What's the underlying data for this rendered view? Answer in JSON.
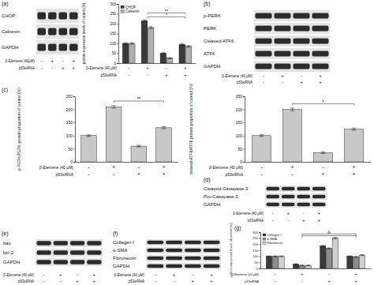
{
  "panel_labels": [
    "(a)",
    "(b)",
    "(c)",
    "(d)",
    "(e)",
    "(f)",
    "(g)"
  ],
  "blots": [
    {
      "rows": [
        "CHOP",
        "Calnexin",
        "GAPDH"
      ],
      "treatments": [
        {
          "label": "β-Elemene (40μM)",
          "signs": [
            "-",
            "+",
            "-",
            "+"
          ]
        },
        {
          "label": "p53siRNA",
          "signs": [
            "-",
            "-",
            "+",
            "+"
          ]
        }
      ]
    },
    {
      "rows": [
        "p-PERK",
        "PERK",
        "Cleaved-ATF6",
        "ATF6",
        "GAPDH"
      ],
      "treatments": [
        {
          "label": "β-Elemene (40 μM)",
          "signs": [
            "-",
            "+",
            "-",
            "+"
          ]
        },
        {
          "label": "p53siRNA",
          "signs": [
            "-",
            "-",
            "+",
            "+"
          ]
        }
      ]
    },
    {
      "rows": [
        "Cleaved-Casepase-3",
        "Pro-Casepase-3",
        "GAPDH"
      ],
      "treatments": [
        {
          "label": "β-Elemene (40 μM)",
          "signs": [
            "-",
            "+",
            "-",
            "+"
          ]
        },
        {
          "label": "p53siRNA",
          "signs": [
            "-",
            "-",
            "+",
            "+"
          ]
        }
      ]
    },
    {
      "rows": [
        "bax",
        "bcl-2",
        "GAPDH"
      ],
      "treatments": [
        {
          "label": "β-Elemene (40 μM)",
          "signs": [
            "-",
            "+",
            "-",
            "+"
          ]
        },
        {
          "label": "p53siRNA",
          "signs": [
            "-",
            "-",
            "+",
            "+"
          ]
        }
      ]
    },
    {
      "rows": [
        "Collagen I",
        "α-SMA",
        "Fibronectin",
        "GAPDH"
      ],
      "treatments": [
        {
          "label": "β-Elemene (40 μM)",
          "signs": [
            "-",
            "+",
            "-",
            "+"
          ]
        },
        {
          "label": "p53siRNA",
          "signs": [
            "-",
            "-",
            "+",
            "+"
          ]
        }
      ]
    }
  ],
  "chart_data": [
    {
      "type": "bar",
      "categories": [
        null,
        null,
        null,
        null
      ],
      "series": [
        {
          "name": "CHOP",
          "color": "#3a3a3a",
          "values": [
            100,
            215,
            50,
            95
          ],
          "errors": [
            4,
            5,
            3,
            5
          ]
        },
        {
          "name": "Calnexin",
          "color": "#b0b0b0",
          "values": [
            100,
            180,
            25,
            85
          ],
          "errors": [
            4,
            5,
            3,
            4
          ]
        }
      ],
      "ylabel": "protein expression levels of control (%)",
      "ylim": [
        0,
        300
      ],
      "yticks": [
        0,
        50,
        100,
        150,
        200,
        250,
        300
      ],
      "legend": "top-left",
      "treatments": [
        {
          "label": "β-Elemene (40 μM)",
          "signs": [
            "-",
            "+",
            "-",
            "+"
          ]
        },
        {
          "label": "p53siRNA",
          "signs": [
            "-",
            "-",
            "+",
            "+"
          ]
        }
      ],
      "annotations": [
        {
          "text": "**",
          "from": 1,
          "to": 3,
          "y": 255
        },
        {
          "text": "*",
          "from": 1,
          "to": 3,
          "y": 235
        }
      ]
    },
    {
      "type": "bar",
      "categories": [
        null,
        null,
        null,
        null
      ],
      "series": [
        {
          "color": "#c8c8c8",
          "values": [
            100,
            210,
            60,
            130
          ],
          "errors": [
            3,
            5,
            3,
            4
          ]
        }
      ],
      "ylabel": "p-PERK/PERK protein proportion of control (%)",
      "ylim": [
        0,
        250
      ],
      "yticks": [
        0,
        50,
        100,
        150,
        200,
        250
      ],
      "treatments": [
        {
          "label": "β-Elemene (40 μM)",
          "signs": [
            "-",
            "+",
            "-",
            "+"
          ]
        },
        {
          "label": "p53siRNA",
          "signs": [
            "-",
            "-",
            "+",
            "+"
          ]
        }
      ],
      "annotations": [
        {
          "text": "**",
          "from": 1,
          "to": 3,
          "y": 232
        }
      ]
    },
    {
      "type": "bar",
      "categories": [
        null,
        null,
        null,
        null
      ],
      "series": [
        {
          "color": "#c8c8c8",
          "values": [
            100,
            200,
            35,
            125
          ],
          "errors": [
            3,
            5,
            3,
            4
          ]
        }
      ],
      "ylabel": "cleaved-ATF6/ATF6 protein proportion of control (%)",
      "ylim": [
        0,
        250
      ],
      "yticks": [
        0,
        50,
        100,
        150,
        200,
        250
      ],
      "treatments": [
        {
          "label": "β-Elemene (40 μM)",
          "signs": [
            "-",
            "+",
            "-",
            "+"
          ]
        },
        {
          "label": "p53siRNA",
          "signs": [
            "-",
            "-",
            "+",
            "+"
          ]
        }
      ],
      "annotations": [
        {
          "text": "*",
          "from": 1,
          "to": 3,
          "y": 222
        }
      ]
    },
    {
      "type": "bar",
      "categories": [
        null,
        null,
        null,
        null
      ],
      "series": [
        {
          "name": "Collagen I",
          "color": "#3a3a3a",
          "values": [
            100,
            35,
            185,
            100
          ],
          "errors": [
            3,
            3,
            5,
            4
          ]
        },
        {
          "name": "α-SMA",
          "color": "#8c8c8c",
          "values": [
            100,
            25,
            165,
            95
          ],
          "errors": [
            3,
            3,
            5,
            4
          ]
        },
        {
          "name": "Fibronectin",
          "color": "#d0d0d0",
          "values": [
            100,
            25,
            250,
            110
          ],
          "errors": [
            3,
            3,
            6,
            4
          ]
        }
      ],
      "ylabel": "protein expression levels of control (%)",
      "ylim": [
        0,
        300
      ],
      "yticks": [
        0,
        50,
        100,
        150,
        200,
        250,
        300
      ],
      "legend": "top-left",
      "treatments": [
        {
          "label": "β-Elemene (40 μM)",
          "signs": [
            "-",
            "+",
            "-",
            "+"
          ]
        },
        {
          "label": "p53siRNA",
          "signs": [
            "-",
            "-",
            "+",
            "+"
          ]
        }
      ],
      "annotations": [
        {
          "text": "*",
          "from": 1,
          "to": 3,
          "y": 285
        },
        {
          "text": "**",
          "from": 1,
          "to": 3,
          "y": 270
        }
      ]
    }
  ]
}
